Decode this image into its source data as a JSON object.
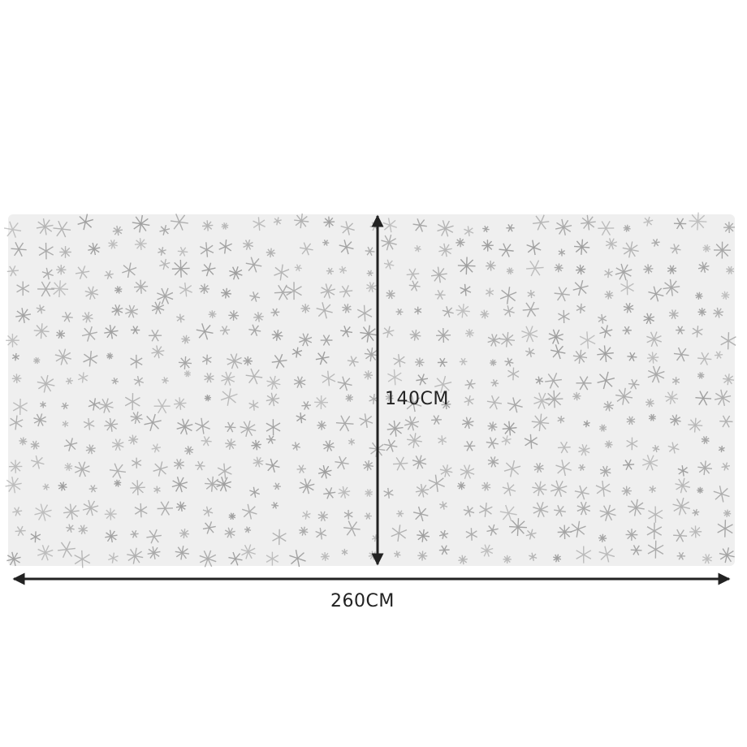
{
  "dimensions": {
    "height_label": "140CM",
    "width_label": "260CM"
  },
  "colors": {
    "cloth": "#efefef",
    "snowflake": "#9a9a9a",
    "arrow": "#222222",
    "background": "#ffffff"
  }
}
